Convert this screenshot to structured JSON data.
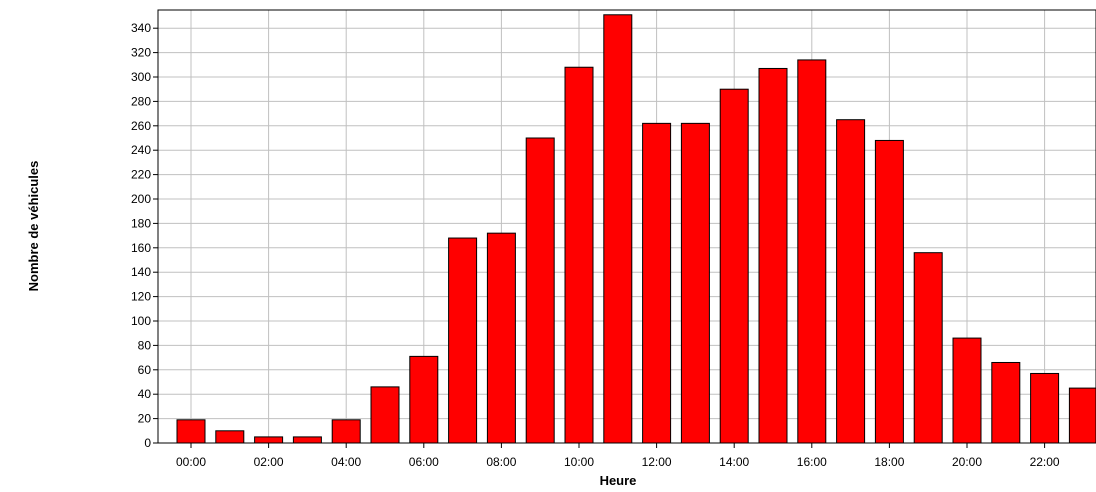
{
  "chart_data": {
    "type": "bar",
    "title": "",
    "xlabel": "Heure",
    "ylabel": "Nombre de véhicules",
    "ylim": [
      0,
      350
    ],
    "yticks": [
      0,
      20,
      40,
      60,
      80,
      100,
      120,
      140,
      160,
      180,
      200,
      220,
      240,
      260,
      280,
      300,
      320,
      340
    ],
    "grid": true,
    "legend": "none",
    "bar_color": "#ff0000",
    "bar_edge_color": "#000000",
    "grid_color": "#c0c0c0",
    "categories": [
      "00:00",
      "01:00",
      "02:00",
      "03:00",
      "04:00",
      "05:00",
      "06:00",
      "07:00",
      "08:00",
      "09:00",
      "10:00",
      "11:00",
      "12:00",
      "13:00",
      "14:00",
      "15:00",
      "16:00",
      "17:00",
      "18:00",
      "19:00",
      "20:00",
      "21:00",
      "22:00",
      "23:00"
    ],
    "xtick_labels": [
      "00:00",
      "02:00",
      "04:00",
      "06:00",
      "08:00",
      "10:00",
      "12:00",
      "14:00",
      "16:00",
      "18:00",
      "20:00",
      "22:00"
    ],
    "values": [
      19,
      10,
      5,
      5,
      19,
      46,
      71,
      168,
      172,
      250,
      308,
      351,
      262,
      262,
      290,
      307,
      314,
      265,
      248,
      156,
      86,
      66,
      57,
      45
    ]
  }
}
